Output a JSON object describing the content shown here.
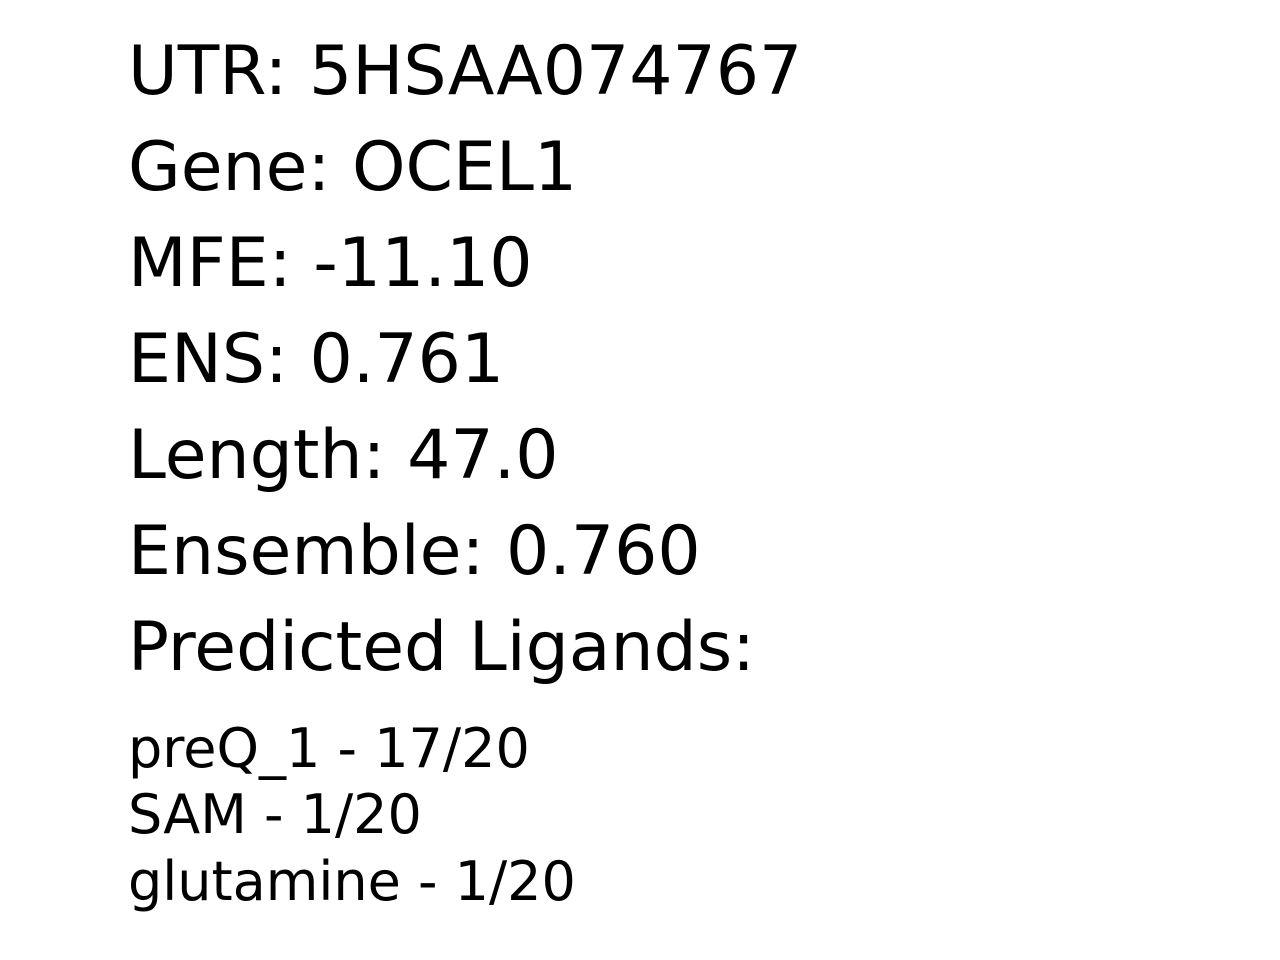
{
  "record": {
    "utr": "UTR: 5HSAA074767",
    "gene": "Gene: OCEL1",
    "mfe": "MFE: -11.10",
    "ens": "ENS: 0.761",
    "length": "Length: 47.0",
    "ensemble": "Ensemble: 0.760",
    "ligands_heading": "Predicted Ligands:"
  },
  "ligands": [
    {
      "text": "preQ_1 - 17/20"
    },
    {
      "text": "SAM - 1/20"
    },
    {
      "text": "glutamine - 1/20"
    }
  ]
}
